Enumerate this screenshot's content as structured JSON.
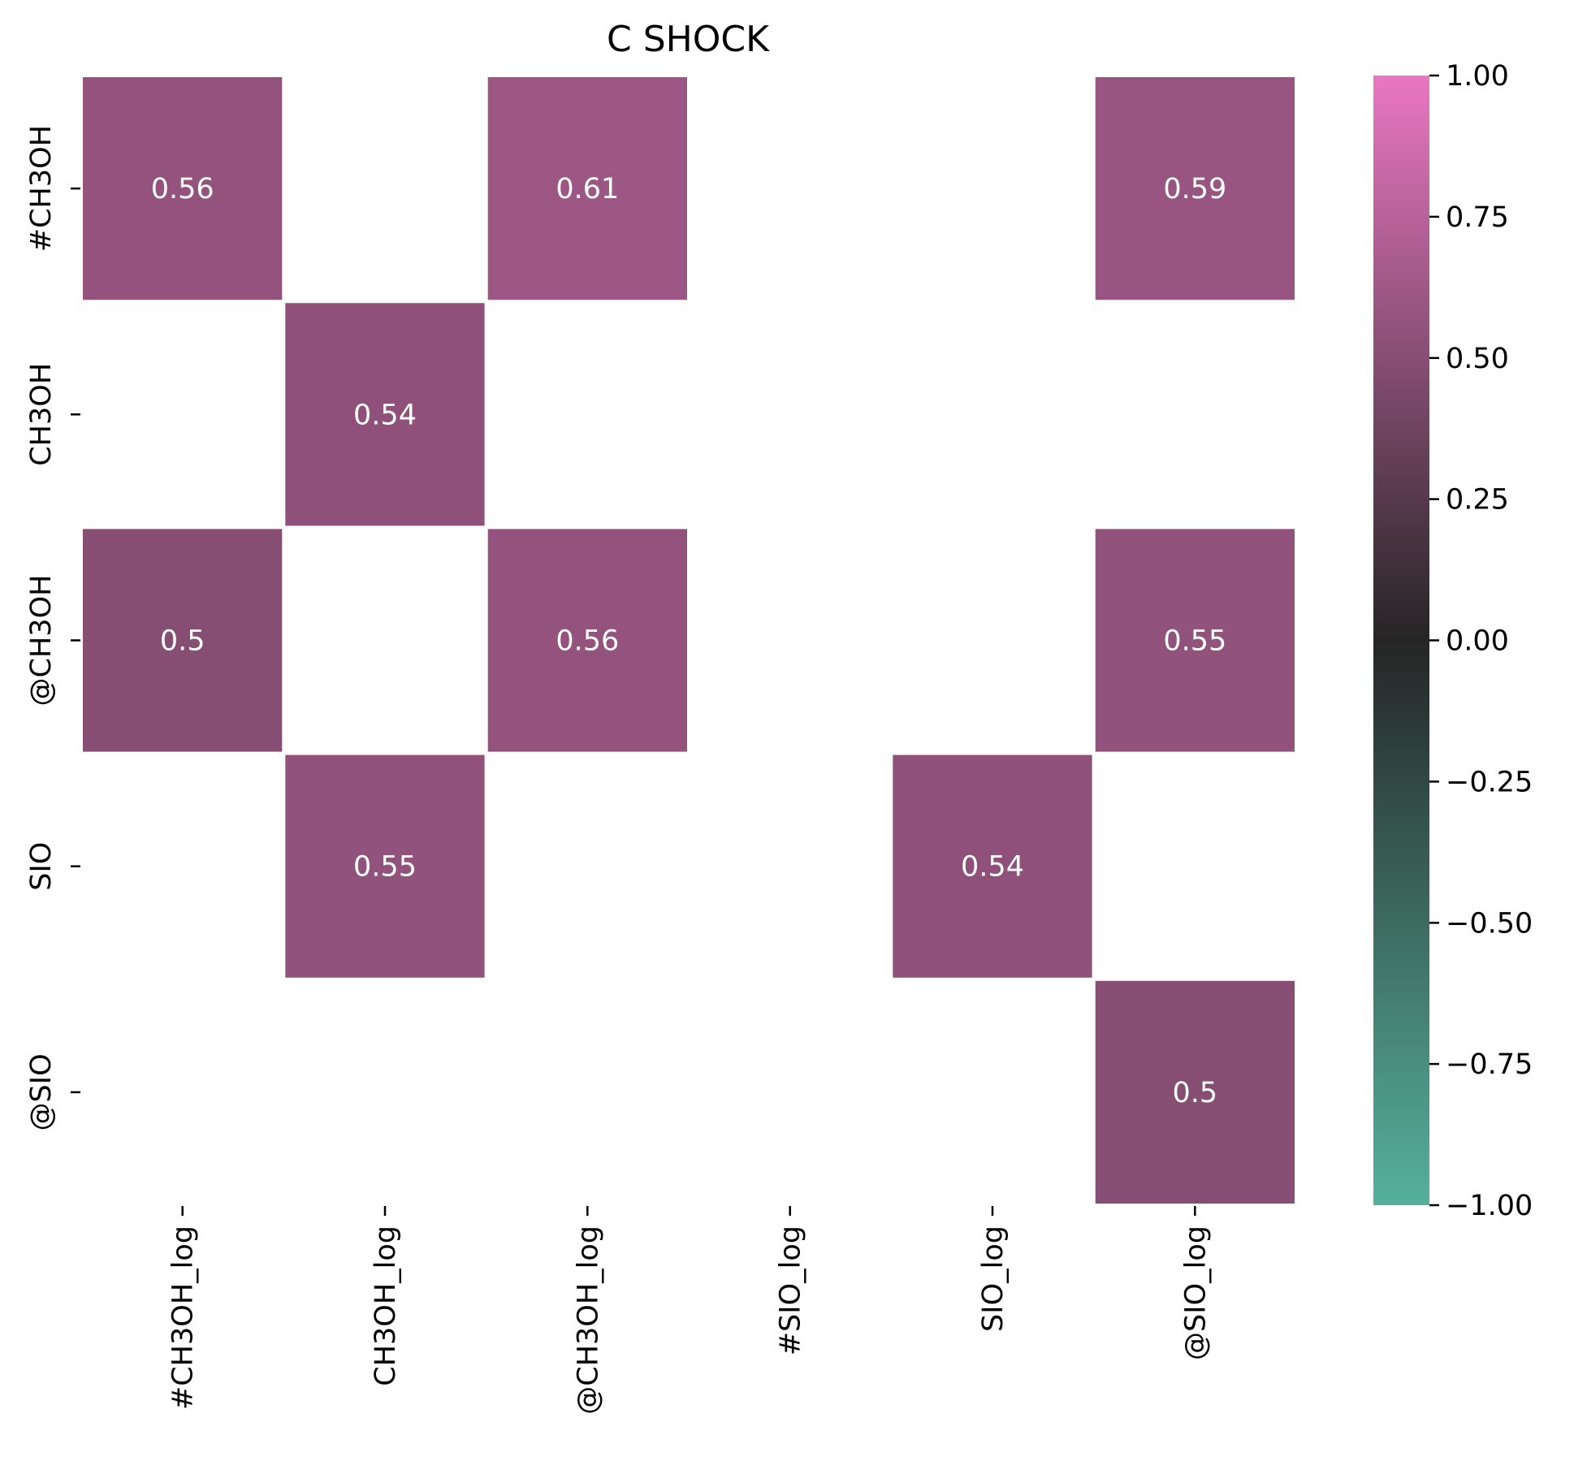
{
  "chart_data": {
    "type": "heatmap",
    "title": "C SHOCK",
    "xlabel": "",
    "ylabel": "",
    "x_categories": [
      "#CH3OH_log",
      "CH3OH_log",
      "@CH3OH_log",
      "#SIO_log",
      "SIO_log",
      "@SIO_log"
    ],
    "y_categories": [
      "#CH3OH",
      "CH3OH",
      "@CH3OH",
      "SIO",
      "@SIO"
    ],
    "values": [
      [
        0.56,
        null,
        0.61,
        null,
        null,
        0.59
      ],
      [
        null,
        0.54,
        null,
        null,
        null,
        null
      ],
      [
        0.5,
        null,
        0.56,
        null,
        null,
        0.55
      ],
      [
        null,
        0.55,
        null,
        null,
        0.54,
        null
      ],
      [
        null,
        null,
        null,
        null,
        null,
        0.5
      ]
    ],
    "value_labels": [
      [
        "0.56",
        "",
        "0.61",
        "",
        "",
        "0.59"
      ],
      [
        "",
        "0.54",
        "",
        "",
        "",
        ""
      ],
      [
        "0.5",
        "",
        "0.56",
        "",
        "",
        "0.55"
      ],
      [
        "",
        "0.55",
        "",
        "",
        "0.54",
        ""
      ],
      [
        "",
        "",
        "",
        "",
        "",
        "0.5"
      ]
    ],
    "colorbar": {
      "range": [
        -1.0,
        1.0
      ],
      "ticks": [
        1.0,
        0.75,
        0.5,
        0.25,
        0.0,
        -0.25,
        -0.5,
        -0.75,
        -1.0
      ],
      "tick_labels": [
        "1.00",
        "0.75",
        "0.50",
        "0.25",
        "0.00",
        "−0.25",
        "−0.50",
        "−0.75",
        "−1.00"
      ],
      "colormap": "diverging teal to pink through dark center",
      "colors": {
        "min": "#55b19c",
        "center": "#252525",
        "max": "#e977c1"
      }
    },
    "grid": false,
    "legend": "colorbar at right"
  }
}
